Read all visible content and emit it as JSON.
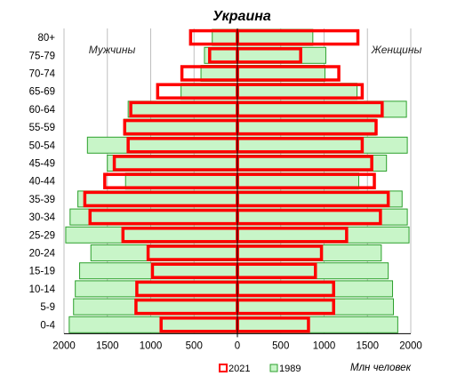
{
  "chart_data": {
    "type": "bar",
    "orientation": "horizontal-pyramid",
    "title": "Украина",
    "left_label": "Мужчины",
    "right_label": "Женщины",
    "unit_label": "Млн человек",
    "categories": [
      "80+",
      "75-79",
      "70-74",
      "65-69",
      "60-64",
      "55-59",
      "50-54",
      "45-49",
      "40-44",
      "35-39",
      "30-34",
      "25-29",
      "20-24",
      "15-19",
      "10-14",
      "5-9",
      "0-4"
    ],
    "x_ticks": [
      "2000",
      "1500",
      "1000",
      "500",
      "0",
      "500",
      "1000",
      "1500",
      "2000"
    ],
    "xlim": [
      -2000,
      2000
    ],
    "series": [
      {
        "name": "1989",
        "fill": "#c8f5c8",
        "stroke": "#2ca02c",
        "male": [
          290,
          380,
          420,
          650,
          1260,
          1310,
          1730,
          1500,
          1290,
          1840,
          1930,
          1980,
          1690,
          1820,
          1870,
          1890,
          1940
        ],
        "female": [
          870,
          1020,
          1010,
          1380,
          1950,
          1600,
          1960,
          1720,
          1400,
          1900,
          1960,
          1980,
          1660,
          1740,
          1790,
          1800,
          1850
        ]
      },
      {
        "name": "2021",
        "fill": "none",
        "stroke": "#ff0000",
        "male": [
          540,
          320,
          640,
          920,
          1230,
          1300,
          1260,
          1420,
          1530,
          1760,
          1700,
          1320,
          1030,
          980,
          1160,
          1170,
          880
        ],
        "female": [
          1390,
          730,
          1170,
          1440,
          1670,
          1600,
          1440,
          1550,
          1580,
          1740,
          1650,
          1260,
          970,
          900,
          1110,
          1110,
          820
        ]
      }
    ],
    "grid": true,
    "legend_position": "bottom"
  }
}
